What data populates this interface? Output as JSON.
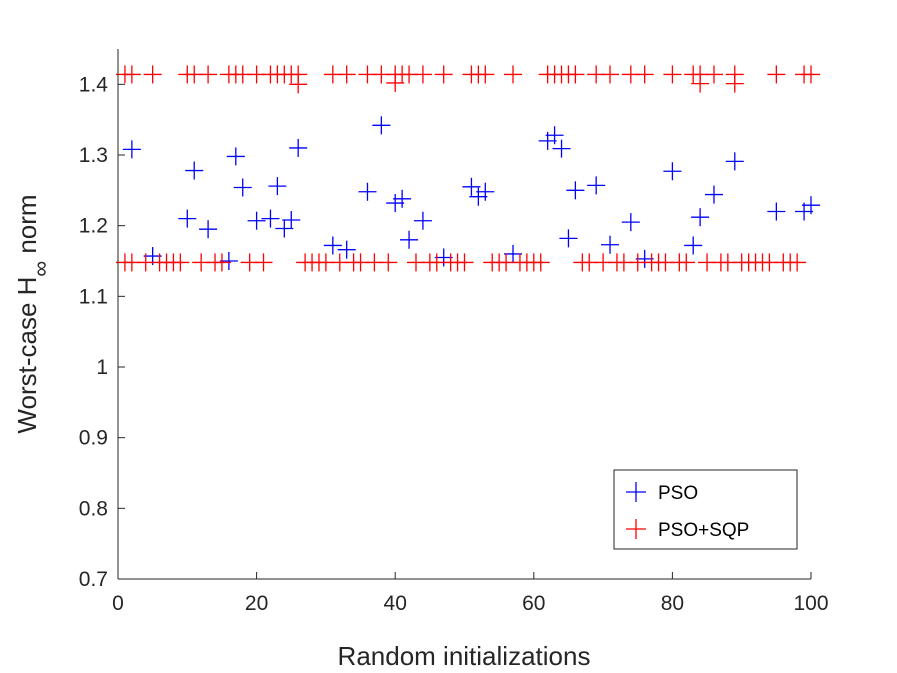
{
  "chart_data": {
    "type": "scatter",
    "title": "",
    "xlabel": "Random initializations",
    "ylabel_main": "Worst-case H",
    "ylabel_sub": "∞",
    "ylabel_tail": " norm",
    "xlim": [
      0,
      100
    ],
    "ylim": [
      0.7,
      1.45
    ],
    "xticks": [
      "0",
      "20",
      "40",
      "60",
      "80",
      "100"
    ],
    "xtick_values": [
      0,
      20,
      40,
      60,
      80,
      100
    ],
    "yticks": [
      "0.7",
      "0.8",
      "0.9",
      "1",
      "1.1",
      "1.2",
      "1.3",
      "1.4"
    ],
    "ytick_values": [
      0.7,
      0.8,
      0.9,
      1.0,
      1.1,
      1.2,
      1.3,
      1.4
    ],
    "grid": false,
    "legend_position": "bottom-right",
    "marker": "+",
    "series": [
      {
        "name": "PSO",
        "color": "#0000ff",
        "points": [
          [
            2,
            1.308
          ],
          [
            5,
            1.157
          ],
          [
            10,
            1.21
          ],
          [
            11,
            1.278
          ],
          [
            13,
            1.195
          ],
          [
            16,
            1.15
          ],
          [
            17,
            1.298
          ],
          [
            18,
            1.254
          ],
          [
            20,
            1.207
          ],
          [
            22,
            1.21
          ],
          [
            23,
            1.256
          ],
          [
            24,
            1.196
          ],
          [
            25,
            1.208
          ],
          [
            26,
            1.31
          ],
          [
            31,
            1.172
          ],
          [
            33,
            1.166
          ],
          [
            36,
            1.248
          ],
          [
            38,
            1.342
          ],
          [
            40,
            1.232
          ],
          [
            41,
            1.238
          ],
          [
            42,
            1.18
          ],
          [
            44,
            1.207
          ],
          [
            47,
            1.155
          ],
          [
            51,
            1.255
          ],
          [
            52,
            1.241
          ],
          [
            53,
            1.248
          ],
          [
            57,
            1.16
          ],
          [
            62,
            1.32
          ],
          [
            63,
            1.328
          ],
          [
            64,
            1.309
          ],
          [
            65,
            1.182
          ],
          [
            66,
            1.25
          ],
          [
            69,
            1.257
          ],
          [
            71,
            1.173
          ],
          [
            74,
            1.205
          ],
          [
            76,
            1.153
          ],
          [
            80,
            1.277
          ],
          [
            83,
            1.172
          ],
          [
            84,
            1.212
          ],
          [
            86,
            1.244
          ],
          [
            89,
            1.291
          ],
          [
            95,
            1.22
          ],
          [
            99,
            1.22
          ],
          [
            100,
            1.229
          ]
        ]
      },
      {
        "name": "PSO+SQP",
        "color": "#ff0000",
        "upper_level": 1.414,
        "lower_level": 1.148,
        "upper_x": [
          1,
          2,
          5,
          10,
          11,
          13,
          16,
          17,
          18,
          20,
          22,
          23,
          24,
          25,
          26,
          31,
          33,
          36,
          38,
          40,
          41,
          42,
          44,
          47,
          51,
          52,
          53,
          57,
          62,
          63,
          64,
          65,
          66,
          69,
          71,
          74,
          76,
          80,
          83,
          84,
          86,
          89,
          95,
          99,
          100
        ],
        "upper_exceptions": [
          [
            26,
            1.4
          ],
          [
            40,
            1.402
          ],
          [
            84,
            1.401
          ],
          [
            89,
            1.401
          ]
        ],
        "lower_x": [
          1,
          2,
          4,
          6,
          7,
          8,
          9,
          12,
          14,
          15,
          19,
          21,
          27,
          28,
          29,
          30,
          32,
          34,
          35,
          37,
          39,
          43,
          45,
          46,
          48,
          49,
          50,
          54,
          55,
          56,
          58,
          59,
          60,
          61,
          67,
          68,
          70,
          72,
          73,
          75,
          77,
          78,
          79,
          81,
          82,
          85,
          87,
          88,
          90,
          91,
          92,
          93,
          94,
          96,
          97,
          98
        ]
      }
    ]
  }
}
